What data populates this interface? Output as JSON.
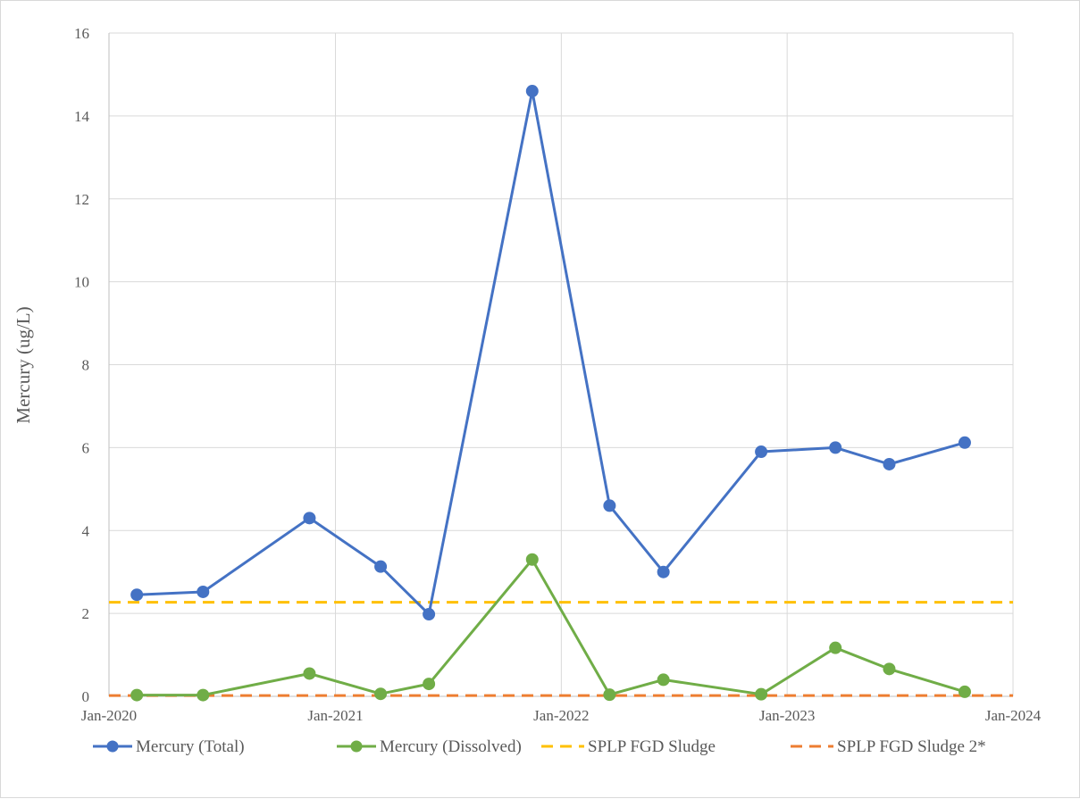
{
  "chart_data": {
    "type": "line",
    "title": "",
    "xlabel": "",
    "ylabel": "Mercury (ug/L)",
    "xlim": [
      "2020-01-01",
      "2024-01-01"
    ],
    "ylim": [
      0,
      16
    ],
    "x_ticks": [
      "Jan-2020",
      "Jan-2021",
      "Jan-2022",
      "Jan-2023",
      "Jan-2024"
    ],
    "y_ticks": [
      "0",
      "2",
      "4",
      "6",
      "8",
      "10",
      "12",
      "14",
      "16"
    ],
    "grid": true,
    "legend_position": "bottom",
    "series": [
      {
        "name": "Mercury (Total)",
        "color": "#4472c4",
        "style": "line-markers",
        "x": [
          "2020-02-15",
          "2020-06-01",
          "2020-11-20",
          "2021-03-15",
          "2021-06-01",
          "2021-11-15",
          "2022-03-20",
          "2022-06-15",
          "2022-11-20",
          "2023-03-20",
          "2023-06-15",
          "2023-10-15"
        ],
        "y": [
          2.45,
          2.52,
          4.3,
          3.13,
          1.98,
          14.6,
          4.6,
          3.0,
          5.9,
          6.0,
          5.6,
          6.12
        ]
      },
      {
        "name": "Mercury (Dissolved)",
        "color": "#70ad47",
        "style": "line-markers",
        "x": [
          "2020-02-15",
          "2020-06-01",
          "2020-11-20",
          "2021-03-15",
          "2021-06-01",
          "2021-11-15",
          "2022-03-20",
          "2022-06-15",
          "2022-11-20",
          "2023-03-20",
          "2023-06-15",
          "2023-10-15"
        ],
        "y": [
          0.03,
          0.03,
          0.55,
          0.06,
          0.3,
          3.3,
          0.04,
          0.4,
          0.05,
          1.17,
          0.66,
          0.11
        ]
      },
      {
        "name": "SPLP FGD Sludge",
        "color": "#ffc000",
        "style": "dashed",
        "x": [
          "2020-01-01",
          "2024-01-01"
        ],
        "y": [
          2.27,
          2.27
        ]
      },
      {
        "name": "SPLP FGD Sludge 2*",
        "color": "#ed7d31",
        "style": "dashed",
        "x": [
          "2020-01-01",
          "2024-01-01"
        ],
        "y": [
          0.02,
          0.02
        ]
      }
    ]
  }
}
